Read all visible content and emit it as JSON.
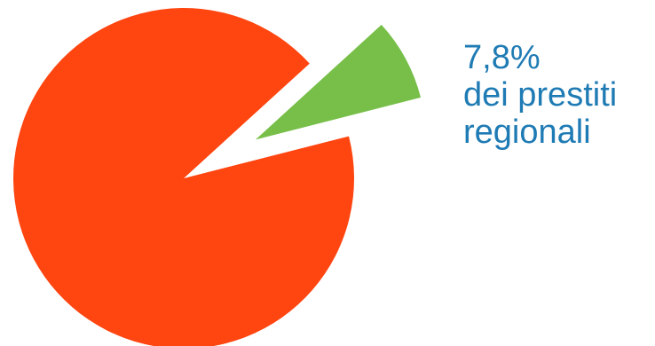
{
  "chart_data": {
    "type": "pie",
    "title": "",
    "slices": [
      {
        "label": "",
        "value": 92.2,
        "color": "#ff4510",
        "exploded": false
      },
      {
        "label": "7,8% dei prestiti regionali",
        "value": 7.8,
        "color": "#77bf48",
        "exploded": true
      }
    ],
    "annotation": {
      "value_text": "7,8%",
      "line2": "dei prestiti",
      "line3": "regionali",
      "color": "#1f7bb4"
    },
    "legend": "none"
  }
}
